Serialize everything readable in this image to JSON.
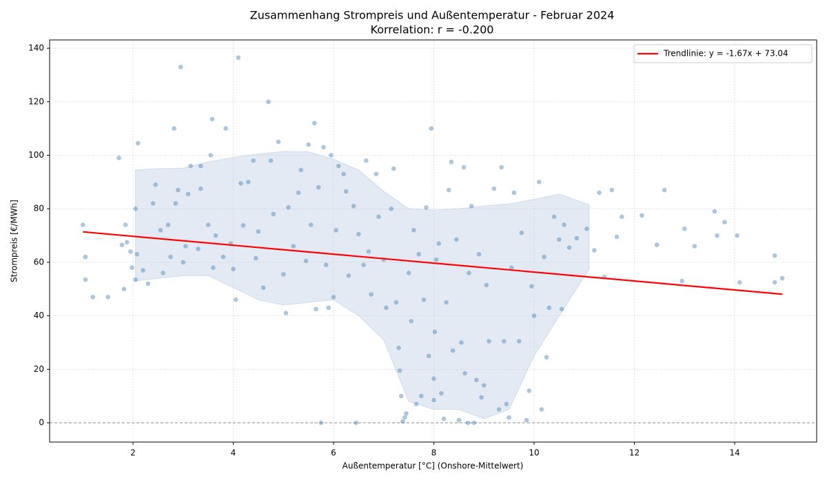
{
  "chart_data": {
    "type": "scatter",
    "title": "Zusammenhang Strompreis und Außentemperatur - Februar 2024",
    "subtitle": "Korrelation: r = -0.200",
    "x_label": "Außentemperatur [°C] (Onshore-Mittelwert)",
    "y_label": "Strompreis [€/MWh]",
    "xlim": [
      0.337,
      15.636
    ],
    "ylim": [
      -7.2,
      143.1
    ],
    "xticks": [
      2,
      4,
      6,
      8,
      10,
      12,
      14
    ],
    "yticks": [
      0,
      20,
      40,
      60,
      80,
      100,
      120,
      140
    ],
    "grid": true,
    "legend_position": "upper right",
    "reference_line": 0,
    "point_color": "#4682b4",
    "x": [
      1.0,
      1.05,
      1.05,
      1.2,
      1.5,
      1.72,
      1.78,
      1.82,
      1.85,
      1.88,
      1.95,
      1.98,
      2.05,
      2.05,
      2.1,
      2.08,
      2.2,
      2.3,
      2.4,
      2.45,
      2.55,
      2.6,
      2.7,
      2.75,
      2.82,
      2.85,
      2.9,
      2.95,
      3.0,
      3.05,
      3.1,
      3.15,
      3.3,
      3.35,
      3.35,
      3.5,
      3.55,
      3.58,
      3.6,
      3.65,
      3.8,
      3.85,
      3.95,
      4.0,
      4.1,
      4.05,
      4.15,
      4.2,
      4.3,
      4.4,
      4.45,
      4.5,
      4.6,
      4.7,
      4.75,
      4.8,
      4.9,
      5.0,
      5.05,
      5.1,
      5.2,
      5.3,
      5.35,
      5.45,
      5.5,
      5.55,
      5.62,
      5.65,
      5.7,
      5.75,
      5.8,
      5.85,
      5.9,
      5.95,
      6.0,
      6.05,
      6.1,
      6.2,
      6.25,
      6.3,
      6.4,
      6.45,
      6.5,
      6.6,
      6.65,
      6.7,
      6.75,
      6.85,
      6.9,
      7.0,
      7.05,
      7.15,
      7.2,
      7.25,
      7.3,
      7.32,
      7.35,
      7.38,
      7.42,
      7.45,
      7.5,
      7.55,
      7.6,
      7.65,
      7.7,
      7.75,
      7.8,
      7.85,
      7.9,
      7.95,
      8.0,
      8.0,
      8.02,
      8.05,
      8.1,
      8.15,
      8.2,
      8.25,
      8.3,
      8.35,
      8.38,
      8.45,
      8.5,
      8.55,
      8.6,
      8.62,
      8.68,
      8.7,
      8.75,
      8.8,
      8.85,
      8.9,
      8.95,
      9.0,
      9.05,
      9.1,
      9.2,
      9.3,
      9.35,
      9.4,
      9.45,
      9.5,
      9.55,
      9.6,
      9.7,
      9.75,
      9.85,
      9.9,
      9.95,
      10.0,
      10.1,
      10.15,
      10.2,
      10.25,
      10.3,
      10.4,
      10.5,
      10.55,
      10.6,
      10.7,
      10.85,
      11.05,
      11.2,
      11.3,
      11.4,
      11.55,
      11.65,
      11.75,
      12.15,
      12.45,
      12.6,
      12.95,
      13.0,
      13.2,
      13.6,
      13.65,
      13.8,
      14.05,
      14.1,
      14.8,
      14.8,
      14.95
    ],
    "values": [
      74,
      62,
      53.5,
      47,
      47,
      99,
      66.5,
      50,
      74,
      67.5,
      64,
      58,
      80,
      53.5,
      104.5,
      63,
      57,
      52,
      82,
      89,
      72,
      56,
      74,
      62,
      110,
      82,
      87,
      133,
      60,
      66,
      85.5,
      96,
      65,
      96,
      87.5,
      74,
      100,
      113.5,
      58,
      70,
      62,
      110,
      67,
      57.5,
      136.5,
      46,
      89.5,
      73.8,
      90,
      98,
      61.5,
      71.5,
      50.5,
      120,
      98,
      78,
      105,
      55.5,
      41,
      80.5,
      66,
      86,
      94.5,
      60.5,
      104,
      74,
      112,
      42.5,
      88,
      0,
      103,
      59,
      43,
      100,
      47,
      72,
      96,
      93,
      86.5,
      55,
      81,
      0,
      70.5,
      59,
      98,
      64,
      48,
      93,
      77,
      61,
      43,
      80,
      95,
      45,
      28,
      19.5,
      10,
      0.5,
      2,
      3.5,
      56,
      38,
      72,
      7,
      63,
      10,
      46,
      80.5,
      25,
      110,
      16.5,
      8.5,
      34,
      61,
      67,
      11,
      1.5,
      45,
      87,
      97.5,
      27,
      68.5,
      1,
      30,
      95.5,
      18.5,
      0,
      56,
      81,
      0,
      16,
      63,
      9.5,
      14,
      51.5,
      30.5,
      87.5,
      5,
      95.5,
      30.5,
      7,
      2,
      58,
      86,
      30.5,
      71,
      1,
      12,
      51,
      40,
      90,
      5,
      62,
      24.5,
      43,
      77,
      68.5,
      42.5,
      74,
      65.5,
      69,
      72.5,
      64.5,
      86,
      54.5,
      87,
      69.5,
      77,
      77.5,
      66.5,
      87,
      53,
      72.5,
      66,
      79,
      70,
      75,
      70,
      52.5,
      62.5,
      52.5,
      54
    ],
    "band": {
      "color": "#b0c4de",
      "x": [
        2.05,
        2.5,
        3,
        3.5,
        4,
        4.5,
        5,
        5.5,
        6,
        6.5,
        7,
        7.5,
        8,
        8.5,
        9,
        9.5,
        10,
        10.5,
        11.1
      ],
      "upper": [
        94.5,
        95,
        95.2,
        97.5,
        99.2,
        100.5,
        101.4,
        101.3,
        98.5,
        94.5,
        86.5,
        80,
        79.5,
        80,
        81,
        81.8,
        83.5,
        85.5,
        81.5
      ],
      "lower": [
        53,
        54,
        55,
        55,
        50.5,
        46,
        44,
        45,
        46,
        40,
        31,
        8,
        5,
        5,
        1.5,
        5,
        25,
        40,
        57.5
      ]
    },
    "trendline": {
      "name": "Trendlinie: y = -1.67x + 73.04",
      "color": "#ff0000",
      "x": [
        1.0,
        14.95
      ],
      "values": [
        71.37,
        48.07
      ]
    }
  }
}
